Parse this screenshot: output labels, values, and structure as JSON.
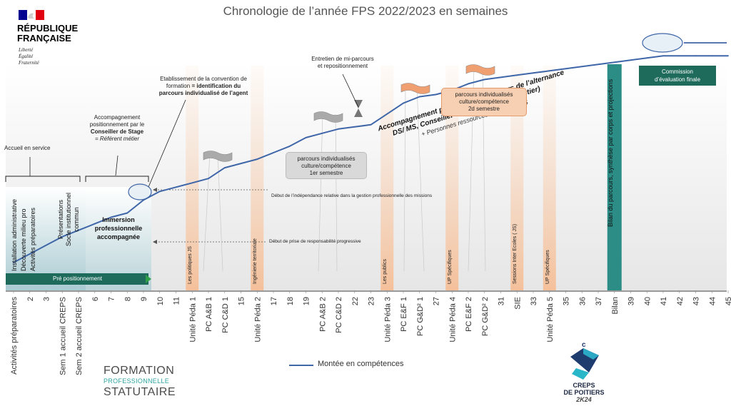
{
  "header": {
    "title": "Chronologie de l’année FPS 2022/2023 en semaines"
  },
  "republique": {
    "name_line1": "RÉPUBLIQUE",
    "name_line2": "FRANÇAISE",
    "motto1": "Liberté",
    "motto2": "Égalité",
    "motto3": "Fraternité"
  },
  "annotations": {
    "accueil": "Accueil en service",
    "accompagnement_l1": "Accompagnement",
    "accompagnement_l2": "positionnement par le",
    "accompagnement_l3": "Conseiller de Stage",
    "accompagnement_l4": "= Référent métier",
    "convention_l1": "Etablissement de la convention de",
    "convention_l2": "formation",
    "convention_l2b": "= identification du",
    "convention_l3": "parcours individualisé de l’agent",
    "entretien_l1": "Entretien de mi-parcours",
    "entretien_l2": "et repositionnement",
    "independance": "Début de l’indépendance relative dans la gestion  professionnelle des missions",
    "responsabilite": "Début de prise de responsabilité progressive",
    "diag_l1": "Accompagnement professionnel - acteurs de l’alternance",
    "diag_l2": "DS/ MS, Conseiller de Stage (Référent métier)",
    "diag_l3": "+ Personnes ressources & réseau FPS"
  },
  "boxes": {
    "s1_l1": "parcours individualisés",
    "s1_l2": "culture/compétence",
    "s1_l3": "1er semestre",
    "s2_l1": "parcours individualisés",
    "s2_l2": "culture/compétence",
    "s2_l3": "2d semestre",
    "commission_l1": "Commission",
    "commission_l2": "d’évaluation finale",
    "pre_positionnement": "Pré positionnement",
    "immersion_l1": "Immersion",
    "immersion_l2": "professionnelle",
    "immersion_l3": "accompagnée"
  },
  "vertical_labels": {
    "installation_l1": "Installation administrative",
    "installation_l2": "Découverte milieu pro",
    "installation_l3": "Activités préparatoires",
    "presentations_l1": "Présentations",
    "presentations_l2": "Socle institutionnel",
    "presentations_l3": "commun",
    "bilan": "Bilan du parcours, synthèse par corps et projections",
    "bands": [
      {
        "text": "Les politiques JS"
      },
      {
        "text": "Ingénierie territoriale"
      },
      {
        "text": "Les publics"
      },
      {
        "text": "UP Spécifiques"
      },
      {
        "text": "Sessions Inter Ecoles ( JS)"
      },
      {
        "text": "UP Spécifiques"
      }
    ]
  },
  "footer": {
    "legend": "Montée en compétences",
    "fps_l1": "FORMATION",
    "fps_l2": "PROFESSIONNELLE",
    "fps_l3": "STATUTAIRE",
    "creps_l1": "CREPS",
    "creps_l2": "DE POITIERS",
    "creps_l3": "2K24"
  },
  "colors": {
    "line": "#3f66a8",
    "teal": "#2c8c86",
    "orange_band": "#f4c9a8",
    "commission": "#1e6b5c"
  },
  "chart_data": {
    "type": "line",
    "xlabel": "",
    "ylabel": "",
    "x_categories": [
      "Activités préparatoires",
      "2",
      "3",
      "Sem 1 accueil CREPS",
      "Sem 2 accueil CREPS",
      "6",
      "7",
      "8",
      "9",
      "10",
      "11",
      "Unité Péda 1",
      "PC A&B 1",
      "PC C&D 1",
      "15",
      "Unité Péda 2",
      "17",
      "18",
      "19",
      "PC A&B 2",
      "PC C&D 2",
      "22",
      "23",
      "Unité Péda 3",
      "PC E&F 1",
      "PC G&D² 1",
      "27",
      "Unité Péda 4",
      "PC E&F 2",
      "PC G&D² 2",
      "31",
      "SIE",
      "33",
      "Unité Péda 5",
      "35",
      "36",
      "37",
      "Bilan",
      "39",
      "40",
      "41",
      "42",
      "43",
      "44",
      "45"
    ],
    "series": [
      {
        "name": "Montée en compétences",
        "values": [
          4,
          8,
          12,
          16,
          19,
          22,
          25,
          27,
          33,
          37,
          39,
          41,
          43,
          48,
          50,
          52,
          55,
          58,
          62,
          64,
          66,
          67,
          68,
          73,
          78,
          81,
          82,
          84,
          87,
          89,
          90,
          91,
          92,
          93,
          94,
          95,
          96,
          97,
          98,
          99,
          100,
          100,
          100,
          100,
          100
        ]
      }
    ],
    "ylim": [
      0,
      110
    ]
  }
}
